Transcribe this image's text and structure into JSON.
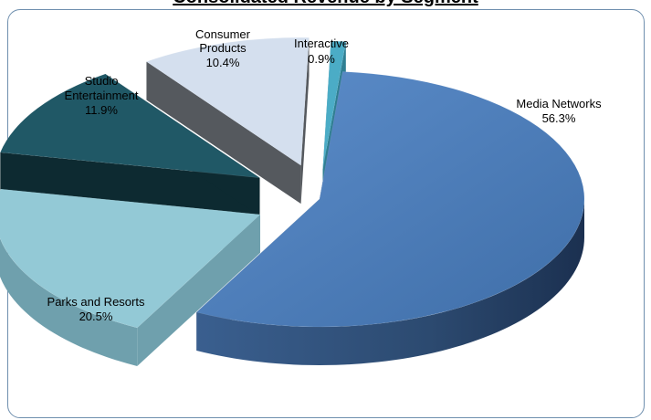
{
  "title": "Consolidated Revenue by Segment",
  "colors": {
    "frame": "#6f8fae"
  },
  "chart_data": {
    "type": "pie",
    "style": "3d-exploded",
    "legend": "none",
    "categories": [
      "Media Networks",
      "Parks and Resorts",
      "Studio Entertainment",
      "Consumer Products",
      "Interactive"
    ],
    "values": [
      56.3,
      20.5,
      11.9,
      10.4,
      0.9
    ],
    "labels": [
      {
        "line1": "Media Networks",
        "line2": "",
        "pct": "56.3%"
      },
      {
        "line1": "Parks and Resorts",
        "line2": "",
        "pct": "20.5%"
      },
      {
        "line1": "Studio",
        "line2": "Entertainment",
        "pct": "11.9%"
      },
      {
        "line1": "Consumer",
        "line2": "Products",
        "pct": "10.4%"
      },
      {
        "line1": "Interactive",
        "line2": "",
        "pct": "0.9%"
      }
    ],
    "colors": {
      "top": [
        "#4f81bd",
        "#93c9d6",
        "#205866",
        "#d4dfee",
        "#4bacc6"
      ],
      "side": [
        "#2c4a70",
        "#6fa0ad",
        "#0d2a31",
        "#55595e",
        "#2f7f93"
      ]
    }
  }
}
